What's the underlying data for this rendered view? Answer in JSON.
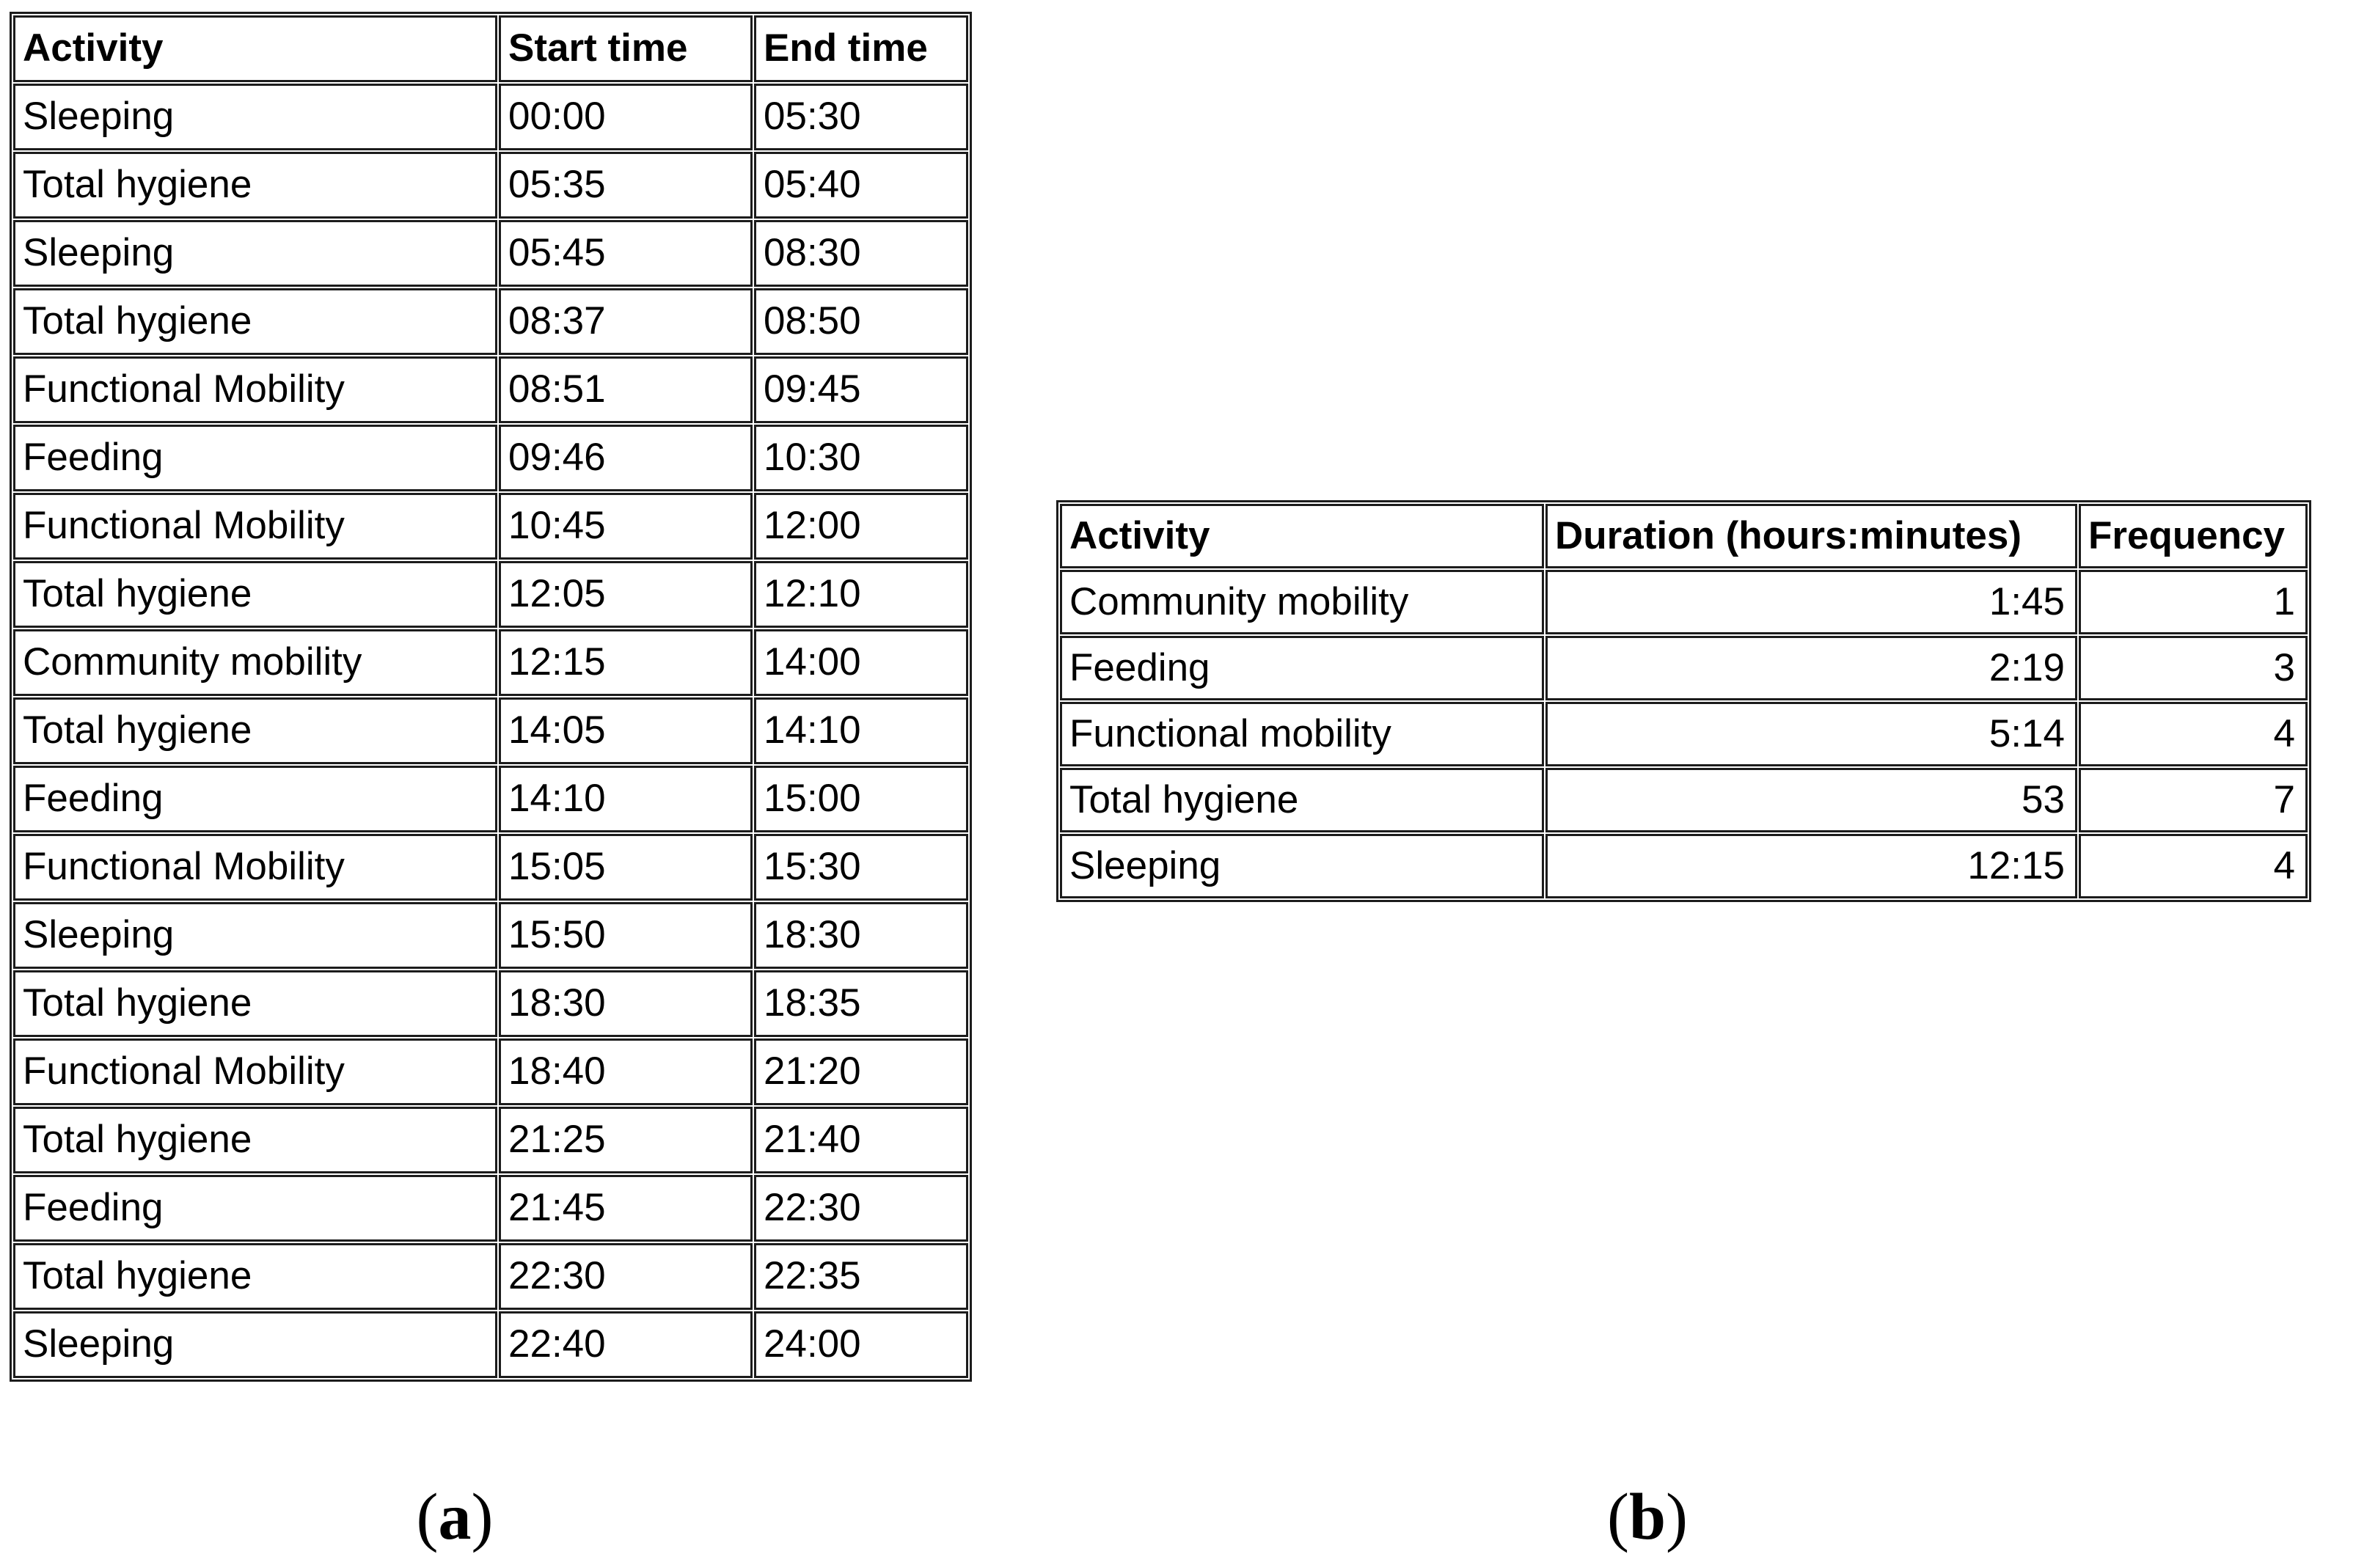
{
  "colors": {
    "background": "#ffffff",
    "border": "#1c1c1c",
    "text": "#000000"
  },
  "table_a": {
    "headers": {
      "activity": "Activity",
      "start": "Start time",
      "end": "End time"
    },
    "rows": [
      {
        "activity": "Sleeping",
        "start": "00:00",
        "end": "05:30"
      },
      {
        "activity": "Total hygiene",
        "start": "05:35",
        "end": "05:40"
      },
      {
        "activity": "Sleeping",
        "start": "05:45",
        "end": "08:30"
      },
      {
        "activity": "Total hygiene",
        "start": "08:37",
        "end": "08:50"
      },
      {
        "activity": "Functional Mobility",
        "start": "08:51",
        "end": "09:45"
      },
      {
        "activity": "Feeding",
        "start": "09:46",
        "end": "10:30"
      },
      {
        "activity": "Functional Mobility",
        "start": "10:45",
        "end": "12:00"
      },
      {
        "activity": "Total hygiene",
        "start": "12:05",
        "end": "12:10"
      },
      {
        "activity": "Community mobility",
        "start": "12:15",
        "end": "14:00"
      },
      {
        "activity": "Total hygiene",
        "start": "14:05",
        "end": "14:10"
      },
      {
        "activity": "Feeding",
        "start": "14:10",
        "end": "15:00"
      },
      {
        "activity": "Functional Mobility",
        "start": "15:05",
        "end": "15:30"
      },
      {
        "activity": "Sleeping",
        "start": "15:50",
        "end": "18:30"
      },
      {
        "activity": "Total hygiene",
        "start": "18:30",
        "end": "18:35"
      },
      {
        "activity": "Functional Mobility",
        "start": "18:40",
        "end": "21:20"
      },
      {
        "activity": "Total hygiene",
        "start": "21:25",
        "end": "21:40"
      },
      {
        "activity": "Feeding",
        "start": "21:45",
        "end": "22:30"
      },
      {
        "activity": "Total hygiene",
        "start": "22:30",
        "end": "22:35"
      },
      {
        "activity": "Sleeping",
        "start": "22:40",
        "end": "24:00"
      }
    ]
  },
  "table_b": {
    "headers": {
      "activity": "Activity",
      "duration": "Duration (hours:minutes)",
      "frequency": "Frequency"
    },
    "rows": [
      {
        "activity": "Community mobility",
        "duration": "1:45",
        "frequency": "1"
      },
      {
        "activity": "Feeding",
        "duration": "2:19",
        "frequency": "3"
      },
      {
        "activity": "Functional mobility",
        "duration": "5:14",
        "frequency": "4"
      },
      {
        "activity": "Total hygiene",
        "duration": "53",
        "frequency": "7"
      },
      {
        "activity": "Sleeping",
        "duration": "12:15",
        "frequency": "4"
      }
    ]
  },
  "captions": {
    "a": {
      "open": "(",
      "letter": "a",
      "close": ")"
    },
    "b": {
      "open": "(",
      "letter": "b",
      "close": ")"
    }
  }
}
